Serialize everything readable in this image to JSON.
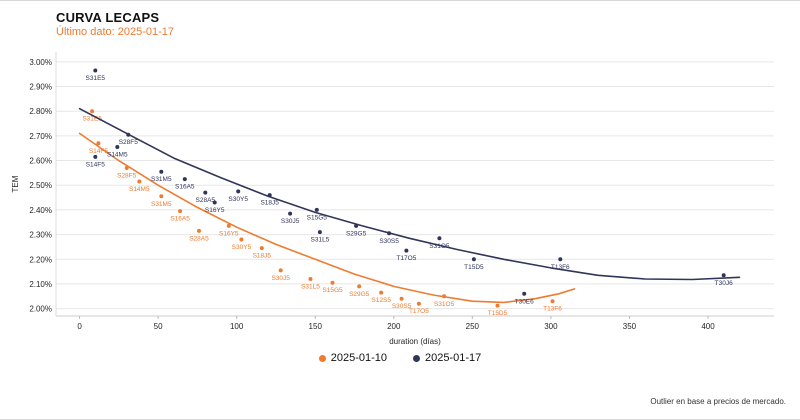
{
  "header": {
    "title": "CURVA LECAPS",
    "subtitle": "Último dato: 2025-01-17"
  },
  "footnote": "Outlier en base a precios de mercado.",
  "chart_data": {
    "type": "scatter",
    "title": "CURVA LECAPS",
    "subtitle": "Último dato: 2025-01-17",
    "xlabel": "duration (días)",
    "ylabel": "TEM",
    "xlim": [
      -15,
      442
    ],
    "ylim": [
      1.97,
      3.04
    ],
    "xticks": [
      0,
      50,
      100,
      150,
      200,
      250,
      300,
      350,
      400
    ],
    "yticks": [
      {
        "v": 2.0,
        "t": "2.00%"
      },
      {
        "v": 2.1,
        "t": "2.10%"
      },
      {
        "v": 2.2,
        "t": "2.20%"
      },
      {
        "v": 2.3,
        "t": "2.30%"
      },
      {
        "v": 2.4,
        "t": "2.40%"
      },
      {
        "v": 2.5,
        "t": "2.50%"
      },
      {
        "v": 2.6,
        "t": "2.60%"
      },
      {
        "v": 2.7,
        "t": "2.70%"
      },
      {
        "v": 2.8,
        "t": "2.80%"
      },
      {
        "v": 2.9,
        "t": "2.90%"
      },
      {
        "v": 3.0,
        "t": "3.00%"
      }
    ],
    "grid": "horizontal",
    "legend_position": "bottom-center",
    "series": [
      {
        "name": "2025-01-10",
        "color": "#EE7B30",
        "points": [
          {
            "label": "S31E5",
            "x": 8,
            "y": 2.8
          },
          {
            "label": "S14F5",
            "x": 12,
            "y": 2.67
          },
          {
            "label": "S28F5",
            "x": 30,
            "y": 2.57
          },
          {
            "label": "S14M5",
            "x": 38,
            "y": 2.515
          },
          {
            "label": "S31M5",
            "x": 52,
            "y": 2.455
          },
          {
            "label": "S16A5",
            "x": 64,
            "y": 2.395
          },
          {
            "label": "S28A5",
            "x": 76,
            "y": 2.315
          },
          {
            "label": "S16Y5",
            "x": 95,
            "y": 2.335
          },
          {
            "label": "S30Y5",
            "x": 103,
            "y": 2.28
          },
          {
            "label": "S18J5",
            "x": 116,
            "y": 2.245
          },
          {
            "label": "S30J5",
            "x": 128,
            "y": 2.155
          },
          {
            "label": "S31L5",
            "x": 147,
            "y": 2.12
          },
          {
            "label": "S15G5",
            "x": 161,
            "y": 2.105
          },
          {
            "label": "S29G5",
            "x": 178,
            "y": 2.09
          },
          {
            "label": "S12S5",
            "x": 192,
            "y": 2.065
          },
          {
            "label": "S30S5",
            "x": 205,
            "y": 2.04
          },
          {
            "label": "T17O5",
            "x": 216,
            "y": 2.02
          },
          {
            "label": "S31O5",
            "x": 232,
            "y": 2.05
          },
          {
            "label": "T15D5",
            "x": 266,
            "y": 2.012
          },
          {
            "label": "T13F6",
            "x": 301,
            "y": 2.03
          }
        ],
        "curve": [
          [
            0,
            2.71
          ],
          [
            25,
            2.6
          ],
          [
            50,
            2.5
          ],
          [
            75,
            2.41
          ],
          [
            100,
            2.33
          ],
          [
            125,
            2.26
          ],
          [
            150,
            2.2
          ],
          [
            175,
            2.14
          ],
          [
            200,
            2.09
          ],
          [
            225,
            2.055
          ],
          [
            250,
            2.03
          ],
          [
            270,
            2.025
          ],
          [
            290,
            2.04
          ],
          [
            305,
            2.06
          ],
          [
            315,
            2.08
          ]
        ]
      },
      {
        "name": "2025-01-17",
        "color": "#30355A",
        "points": [
          {
            "label": "S31E5",
            "x": 10,
            "y": 2.965
          },
          {
            "label": "S28F5",
            "x": 31,
            "y": 2.705
          },
          {
            "label": "S14M5",
            "x": 24,
            "y": 2.655
          },
          {
            "label": "S14F5",
            "x": 10,
            "y": 2.615
          },
          {
            "label": "S31M5",
            "x": 52,
            "y": 2.555
          },
          {
            "label": "S16A5",
            "x": 67,
            "y": 2.525
          },
          {
            "label": "S28A5",
            "x": 80,
            "y": 2.47
          },
          {
            "label": "S16Y5",
            "x": 86,
            "y": 2.43
          },
          {
            "label": "S30Y5",
            "x": 101,
            "y": 2.475
          },
          {
            "label": "S18J5",
            "x": 121,
            "y": 2.46
          },
          {
            "label": "S30J5",
            "x": 134,
            "y": 2.385
          },
          {
            "label": "S15G5",
            "x": 151,
            "y": 2.4
          },
          {
            "label": "S31L5",
            "x": 153,
            "y": 2.31
          },
          {
            "label": "S29G5",
            "x": 176,
            "y": 2.335
          },
          {
            "label": "S30S5",
            "x": 197,
            "y": 2.305
          },
          {
            "label": "T17O5",
            "x": 208,
            "y": 2.235
          },
          {
            "label": "S31O5",
            "x": 229,
            "y": 2.285
          },
          {
            "label": "T15D5",
            "x": 251,
            "y": 2.2
          },
          {
            "label": "T30E6",
            "x": 283,
            "y": 2.06
          },
          {
            "label": "T13F6",
            "x": 306,
            "y": 2.2
          },
          {
            "label": "T30J6",
            "x": 410,
            "y": 2.135
          }
        ],
        "curve": [
          [
            0,
            2.81
          ],
          [
            30,
            2.71
          ],
          [
            60,
            2.61
          ],
          [
            90,
            2.53
          ],
          [
            120,
            2.455
          ],
          [
            150,
            2.39
          ],
          [
            180,
            2.335
          ],
          [
            210,
            2.285
          ],
          [
            240,
            2.24
          ],
          [
            270,
            2.2
          ],
          [
            300,
            2.165
          ],
          [
            330,
            2.135
          ],
          [
            360,
            2.12
          ],
          [
            390,
            2.118
          ],
          [
            420,
            2.127
          ]
        ]
      }
    ]
  }
}
